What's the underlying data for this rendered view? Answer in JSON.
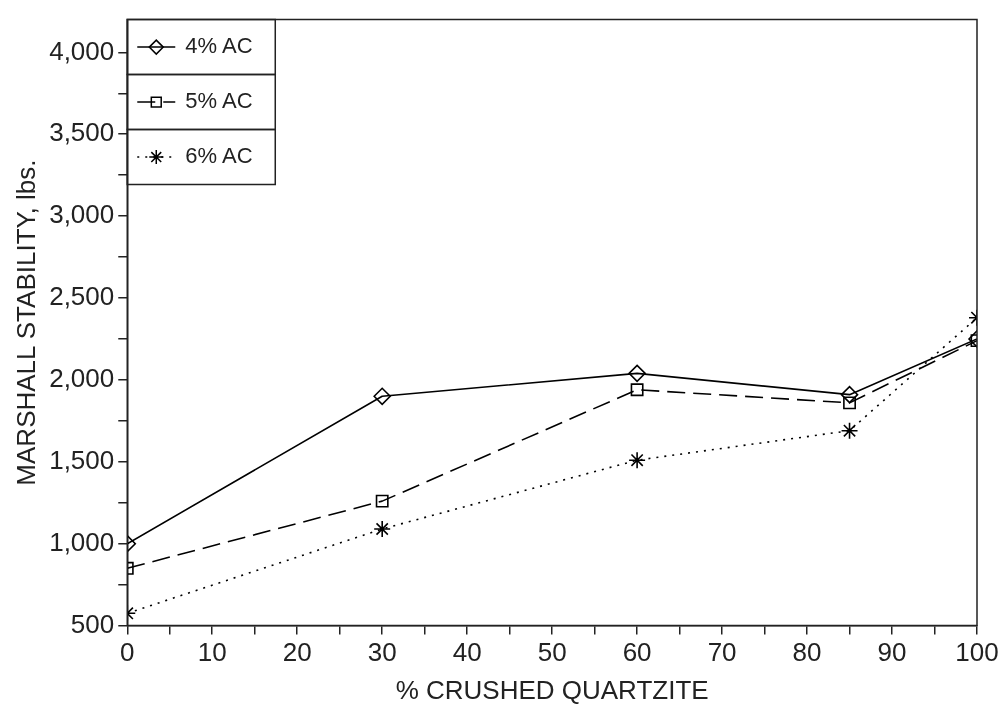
{
  "chart_data": {
    "type": "line",
    "xlabel": "% CRUSHED QUARTZITE",
    "ylabel": "MARSHALL STABILITY, lbs.",
    "x": [
      0,
      30,
      60,
      85,
      100
    ],
    "series": [
      {
        "name": "4% AC",
        "color": "#000000",
        "values": [
          1000,
          1900,
          2040,
          1910,
          2250
        ],
        "marker": "diamond",
        "line_style": "solid"
      },
      {
        "name": "5% AC",
        "color": "#000000",
        "values": [
          850,
          1260,
          1940,
          1860,
          2240
        ],
        "marker": "square",
        "line_style": "dashed"
      },
      {
        "name": "6% AC",
        "color": "#000000",
        "values": [
          575,
          1090,
          1510,
          1690,
          2380
        ],
        "marker": "cross",
        "line_style": "dotted"
      }
    ],
    "xlim": [
      0,
      100
    ],
    "xticks": [
      0,
      {
        "value": 5,
        "label": null
      },
      10,
      {
        "value": 15,
        "label": null
      },
      20,
      {
        "value": 25,
        "label": null
      },
      30,
      {
        "value": 35,
        "label": null
      },
      40,
      {
        "value": 45,
        "label": null
      },
      50,
      {
        "value": 55,
        "label": null
      },
      60,
      {
        "value": 65,
        "label": null
      },
      70,
      {
        "value": 75,
        "label": null
      },
      80,
      {
        "value": 85,
        "label": null
      },
      90,
      {
        "value": 95,
        "label": null
      },
      100
    ],
    "ylim": [
      500,
      4200
    ],
    "yticks": [
      500,
      {
        "value": 750,
        "label": null
      },
      {
        "value": 1000,
        "label": "1,000"
      },
      {
        "value": 1250,
        "label": null
      },
      {
        "value": 1500,
        "label": "1,500"
      },
      {
        "value": 1750,
        "label": null
      },
      {
        "value": 2000,
        "label": "2,000"
      },
      {
        "value": 2250,
        "label": null
      },
      {
        "value": 2500,
        "label": "2,500"
      },
      {
        "value": 2750,
        "label": null
      },
      {
        "value": 3000,
        "label": "3,000"
      },
      {
        "value": 3250,
        "label": null
      },
      {
        "value": 3500,
        "label": "3,500"
      },
      {
        "value": 3750,
        "label": null
      },
      {
        "value": 4000,
        "label": "4,000"
      }
    ],
    "grid": false,
    "legend": "top left"
  }
}
